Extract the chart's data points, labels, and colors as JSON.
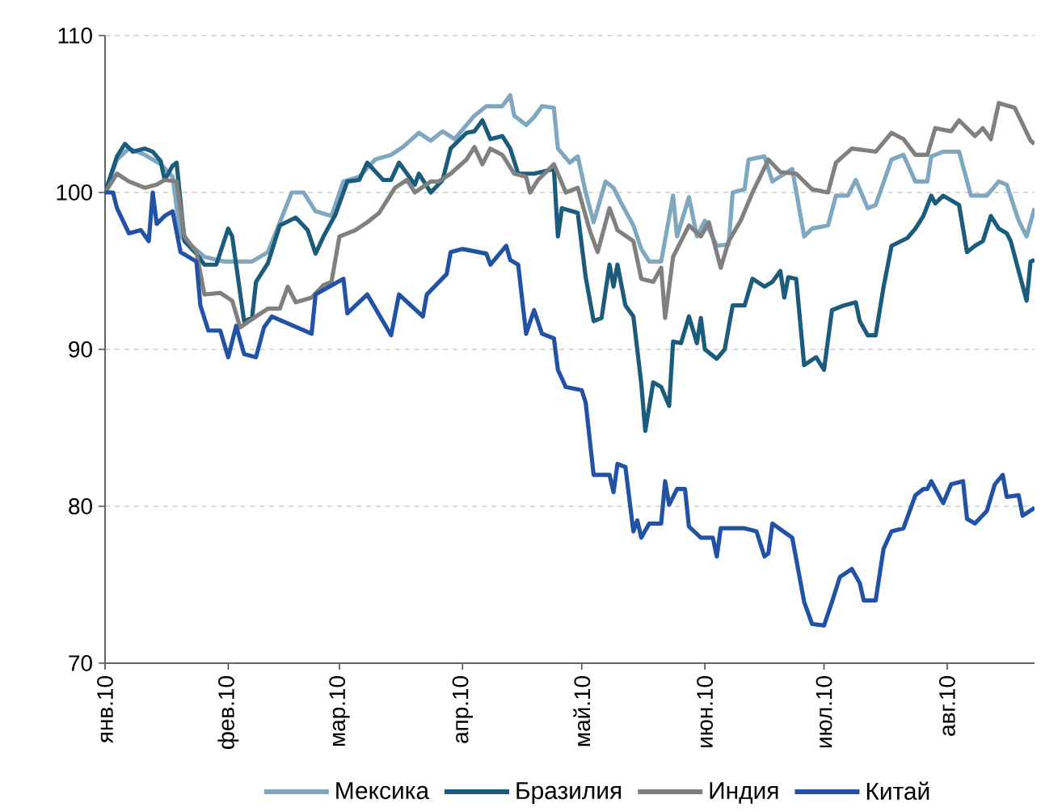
{
  "chart_data": {
    "type": "line",
    "xlim": [
      "2010-01-01",
      "2010-08-23"
    ],
    "xticks": [
      {
        "value": "2010-01-01",
        "label": "янв.10"
      },
      {
        "value": "2010-02-01",
        "label": "фев.10"
      },
      {
        "value": "2010-03-01",
        "label": "мар.10"
      },
      {
        "value": "2010-04-01",
        "label": "апр.10"
      },
      {
        "value": "2010-05-01",
        "label": "май.10"
      },
      {
        "value": "2010-06-01",
        "label": "июн.10"
      },
      {
        "value": "2010-07-01",
        "label": "июл.10"
      },
      {
        "value": "2010-08-01",
        "label": "авг.10"
      }
    ],
    "ylim": [
      70,
      110
    ],
    "yticks": [
      70,
      80,
      90,
      100,
      110
    ],
    "grid": "y",
    "legend": "bottom",
    "marker": "none",
    "line_style": "solid",
    "series": [
      {
        "name": "Мексика",
        "color": "#7fa7c0",
        "x": [
          "2010-01-01",
          "2010-01-04",
          "2010-01-07",
          "2010-01-11",
          "2010-01-15",
          "2010-01-18",
          "2010-01-20",
          "2010-01-26",
          "2010-01-31",
          "2010-02-07",
          "2010-02-11",
          "2010-02-17",
          "2010-02-20",
          "2010-02-23",
          "2010-02-27",
          "2010-03-02",
          "2010-03-06",
          "2010-03-10",
          "2010-03-14",
          "2010-03-17",
          "2010-03-21",
          "2010-03-24",
          "2010-03-27",
          "2010-03-30",
          "2010-04-04",
          "2010-04-07",
          "2010-04-11",
          "2010-04-13",
          "2010-04-14",
          "2010-04-17",
          "2010-04-19",
          "2010-04-21",
          "2010-04-24",
          "2010-04-25",
          "2010-04-28",
          "2010-04-30",
          "2010-05-02",
          "2010-05-04",
          "2010-05-07",
          "2010-05-09",
          "2010-05-11",
          "2010-05-14",
          "2010-05-16",
          "2010-05-18",
          "2010-05-21",
          "2010-05-24",
          "2010-05-25",
          "2010-05-28",
          "2010-05-30",
          "2010-06-01",
          "2010-06-04",
          "2010-06-07",
          "2010-06-08",
          "2010-06-11",
          "2010-06-12",
          "2010-06-16",
          "2010-06-18",
          "2010-06-23",
          "2010-06-26",
          "2010-06-28",
          "2010-07-02",
          "2010-07-04",
          "2010-07-07",
          "2010-07-09",
          "2010-07-12",
          "2010-07-14",
          "2010-07-18",
          "2010-07-21",
          "2010-07-24",
          "2010-07-27",
          "2010-07-28",
          "2010-07-31",
          "2010-08-04",
          "2010-08-07",
          "2010-08-11",
          "2010-08-14",
          "2010-08-16",
          "2010-08-19",
          "2010-08-21",
          "2010-08-23"
        ],
        "values": [
          100,
          102.1,
          102.8,
          102.4,
          101.8,
          101,
          97.2,
          95.9,
          95.6,
          95.6,
          96.2,
          100,
          100,
          98.8,
          98.5,
          100.7,
          101,
          102.1,
          102.4,
          102.9,
          103.8,
          103.3,
          103.9,
          103.4,
          104.9,
          105.5,
          105.5,
          106.2,
          104.9,
          104.3,
          104.8,
          105.5,
          105.4,
          102.8,
          101.9,
          102.3,
          100,
          98.1,
          100.7,
          100.3,
          99.3,
          97.9,
          96.4,
          95.6,
          95.6,
          99.8,
          97.2,
          99.7,
          97.2,
          98.2,
          96.6,
          96.7,
          100,
          100.2,
          102.1,
          102.3,
          100.7,
          101.5,
          97.2,
          97.7,
          97.9,
          99.8,
          99.8,
          100.8,
          99,
          99.2,
          102.1,
          102.4,
          100.7,
          100.7,
          102.3,
          102.6,
          102.6,
          99.8,
          99.8,
          100.7,
          100.5,
          98.2,
          97.2,
          99
        ]
      },
      {
        "name": "Бразилия",
        "color": "#1b5b7b",
        "x": [
          "2010-01-01",
          "2010-01-04",
          "2010-01-06",
          "2010-01-08",
          "2010-01-11",
          "2010-01-13",
          "2010-01-15",
          "2010-01-16",
          "2010-01-18",
          "2010-01-19",
          "2010-01-21",
          "2010-01-24",
          "2010-01-26",
          "2010-01-29",
          "2010-02-01",
          "2010-02-02",
          "2010-02-05",
          "2010-02-07",
          "2010-02-08",
          "2010-02-11",
          "2010-02-14",
          "2010-02-18",
          "2010-02-21",
          "2010-02-23",
          "2010-02-25",
          "2010-02-28",
          "2010-03-03",
          "2010-03-06",
          "2010-03-08",
          "2010-03-12",
          "2010-03-14",
          "2010-03-16",
          "2010-03-20",
          "2010-03-21",
          "2010-03-24",
          "2010-03-27",
          "2010-03-29",
          "2010-04-02",
          "2010-04-04",
          "2010-04-06",
          "2010-04-08",
          "2010-04-11",
          "2010-04-13",
          "2010-04-15",
          "2010-04-19",
          "2010-04-24",
          "2010-04-25",
          "2010-04-26",
          "2010-04-30",
          "2010-05-02",
          "2010-05-04",
          "2010-05-06",
          "2010-05-08",
          "2010-05-09",
          "2010-05-10",
          "2010-05-12",
          "2010-05-14",
          "2010-05-16",
          "2010-05-17",
          "2010-05-19",
          "2010-05-21",
          "2010-05-23",
          "2010-05-24",
          "2010-05-26",
          "2010-05-28",
          "2010-05-30",
          "2010-05-31",
          "2010-06-01",
          "2010-06-04",
          "2010-06-06",
          "2010-06-08",
          "2010-06-11",
          "2010-06-13",
          "2010-06-16",
          "2010-06-18",
          "2010-06-20",
          "2010-06-21",
          "2010-06-22",
          "2010-06-24",
          "2010-06-26",
          "2010-06-29",
          "2010-07-01",
          "2010-07-03",
          "2010-07-06",
          "2010-07-09",
          "2010-07-10",
          "2010-07-12",
          "2010-07-14",
          "2010-07-16",
          "2010-07-18",
          "2010-07-22",
          "2010-07-24",
          "2010-07-26",
          "2010-07-28",
          "2010-07-29",
          "2010-07-31",
          "2010-08-04",
          "2010-08-06",
          "2010-08-08",
          "2010-08-10",
          "2010-08-12",
          "2010-08-14",
          "2010-08-16",
          "2010-08-17",
          "2010-08-21",
          "2010-08-22",
          "2010-08-23"
        ],
        "values": [
          100,
          102.3,
          103.1,
          102.6,
          102.8,
          102.6,
          102,
          100.8,
          101.7,
          101.9,
          96.9,
          96.1,
          95.4,
          95.4,
          97.7,
          97.2,
          91.8,
          92,
          94.3,
          95.5,
          97.9,
          98.4,
          97.6,
          96.1,
          97.2,
          98.6,
          100.7,
          100.8,
          101.9,
          100.8,
          100.8,
          101.9,
          100.5,
          101.2,
          100,
          100.8,
          102.8,
          103.8,
          103.9,
          104.6,
          103.4,
          103.6,
          102.8,
          101.2,
          101.2,
          101.5,
          97.2,
          99,
          98.7,
          94.6,
          91.8,
          92,
          95.4,
          94,
          95.4,
          92.8,
          92.1,
          87.8,
          84.8,
          87.9,
          87.6,
          86.4,
          90.5,
          90.4,
          92.1,
          90.4,
          92,
          90,
          89.4,
          90,
          92.8,
          92.8,
          94.5,
          94,
          94.3,
          95,
          93.3,
          94.6,
          94.5,
          89,
          89.5,
          88.7,
          92.5,
          92.8,
          93,
          91.8,
          90.9,
          90.9,
          94,
          96.6,
          97.1,
          97.7,
          98.5,
          99.8,
          99.3,
          99.8,
          99.2,
          96.2,
          96.6,
          96.9,
          98.5,
          97.7,
          97.4,
          96.9,
          93.1,
          95.6,
          95.7
        ]
      },
      {
        "name": "Индия",
        "color": "#808080",
        "x": [
          "2010-01-01",
          "2010-01-04",
          "2010-01-07",
          "2010-01-11",
          "2010-01-14",
          "2010-01-16",
          "2010-01-19",
          "2010-01-21",
          "2010-01-24",
          "2010-01-26",
          "2010-01-30",
          "2010-02-02",
          "2010-02-04",
          "2010-02-08",
          "2010-02-11",
          "2010-02-14",
          "2010-02-16",
          "2010-02-18",
          "2010-02-22",
          "2010-02-25",
          "2010-02-27",
          "2010-03-01",
          "2010-03-05",
          "2010-03-08",
          "2010-03-11",
          "2010-03-15",
          "2010-03-18",
          "2010-03-20",
          "2010-03-24",
          "2010-03-26",
          "2010-03-29",
          "2010-04-02",
          "2010-04-04",
          "2010-04-06",
          "2010-04-08",
          "2010-04-11",
          "2010-04-14",
          "2010-04-17",
          "2010-04-18",
          "2010-04-20",
          "2010-04-24",
          "2010-04-27",
          "2010-04-30",
          "2010-05-03",
          "2010-05-05",
          "2010-05-08",
          "2010-05-10",
          "2010-05-14",
          "2010-05-16",
          "2010-05-19",
          "2010-05-21",
          "2010-05-22",
          "2010-05-24",
          "2010-05-26",
          "2010-05-28",
          "2010-05-31",
          "2010-06-02",
          "2010-06-05",
          "2010-06-07",
          "2010-06-10",
          "2010-06-13",
          "2010-06-17",
          "2010-06-20",
          "2010-06-24",
          "2010-06-28",
          "2010-07-02",
          "2010-07-04",
          "2010-07-08",
          "2010-07-14",
          "2010-07-18",
          "2010-07-21",
          "2010-07-24",
          "2010-07-27",
          "2010-07-29",
          "2010-08-02",
          "2010-08-04",
          "2010-08-08",
          "2010-08-10",
          "2010-08-12",
          "2010-08-14",
          "2010-08-18",
          "2010-08-22",
          "2010-08-23"
        ],
        "values": [
          100,
          101.2,
          100.7,
          100.3,
          100.5,
          100.8,
          100.7,
          97.2,
          96.2,
          93.5,
          93.6,
          93.1,
          91.4,
          92.1,
          92.6,
          92.6,
          94,
          93,
          93.3,
          94.1,
          94.3,
          97.2,
          97.6,
          98.1,
          98.7,
          100.3,
          100.8,
          100,
          100.7,
          100.7,
          101.2,
          102.1,
          102.9,
          101.8,
          102.8,
          102.4,
          101.2,
          101,
          100,
          100.8,
          101.8,
          100,
          100.3,
          97.6,
          96.2,
          99,
          97.6,
          96.9,
          94.5,
          94.3,
          95.2,
          92,
          95.9,
          96.9,
          97.9,
          97.2,
          98.1,
          95.2,
          96.9,
          98.2,
          100,
          102.1,
          101.3,
          101.2,
          100.2,
          100,
          101.9,
          102.8,
          102.6,
          103.8,
          103.4,
          102.4,
          102.4,
          104.1,
          103.9,
          104.6,
          103.6,
          104.1,
          103.4,
          105.7,
          105.4,
          103.3,
          103.1
        ]
      },
      {
        "name": "Китай",
        "color": "#2152a3",
        "x": [
          "2010-01-01",
          "2010-01-03",
          "2010-01-04",
          "2010-01-07",
          "2010-01-10",
          "2010-01-12",
          "2010-01-13",
          "2010-01-14",
          "2010-01-16",
          "2010-01-18",
          "2010-01-20",
          "2010-01-24",
          "2010-01-25",
          "2010-01-27",
          "2010-01-30",
          "2010-02-01",
          "2010-02-03",
          "2010-02-05",
          "2010-02-08",
          "2010-02-10",
          "2010-02-12",
          "2010-02-22",
          "2010-02-23",
          "2010-03-02",
          "2010-03-03",
          "2010-03-08",
          "2010-03-14",
          "2010-03-16",
          "2010-03-22",
          "2010-03-23",
          "2010-03-28",
          "2010-03-29",
          "2010-04-01",
          "2010-04-07",
          "2010-04-08",
          "2010-04-12",
          "2010-04-13",
          "2010-04-15",
          "2010-04-17",
          "2010-04-19",
          "2010-04-21",
          "2010-04-24",
          "2010-04-25",
          "2010-04-27",
          "2010-05-01",
          "2010-05-02",
          "2010-05-04",
          "2010-05-08",
          "2010-05-09",
          "2010-05-10",
          "2010-05-12",
          "2010-05-14",
          "2010-05-15",
          "2010-05-16",
          "2010-05-18",
          "2010-05-21",
          "2010-05-22",
          "2010-05-23",
          "2010-05-25",
          "2010-05-27",
          "2010-05-28",
          "2010-05-31",
          "2010-06-03",
          "2010-06-04",
          "2010-06-05",
          "2010-06-11",
          "2010-06-14",
          "2010-06-16",
          "2010-06-17",
          "2010-06-18",
          "2010-06-23",
          "2010-06-26",
          "2010-06-28",
          "2010-07-01",
          "2010-07-03",
          "2010-07-05",
          "2010-07-08",
          "2010-07-10",
          "2010-07-11",
          "2010-07-14",
          "2010-07-16",
          "2010-07-18",
          "2010-07-21",
          "2010-07-24",
          "2010-07-26",
          "2010-07-27",
          "2010-07-28",
          "2010-07-31",
          "2010-08-02",
          "2010-08-05",
          "2010-08-06",
          "2010-08-08",
          "2010-08-11",
          "2010-08-13",
          "2010-08-15",
          "2010-08-16",
          "2010-08-19",
          "2010-08-20",
          "2010-08-23"
        ],
        "values": [
          100,
          100,
          99,
          97.4,
          97.6,
          96.9,
          100,
          98,
          98.5,
          98.8,
          96.2,
          95.6,
          92.8,
          91.2,
          91.2,
          89.5,
          91.5,
          89.7,
          89.5,
          91.4,
          92.1,
          91,
          93.5,
          94.5,
          92.3,
          93.5,
          90.9,
          93.5,
          92.1,
          93.5,
          94.8,
          96.2,
          96.4,
          96.1,
          95.4,
          96.6,
          95.7,
          95.4,
          91,
          92.5,
          91,
          90.7,
          88.7,
          87.6,
          87.4,
          86.6,
          82,
          82,
          80.9,
          82.7,
          82.5,
          78.4,
          79.1,
          78,
          78.9,
          78.9,
          81.6,
          80.1,
          81.1,
          81.1,
          78.7,
          78,
          78,
          76.8,
          78.6,
          78.6,
          78.4,
          76.8,
          77,
          78.9,
          78,
          73.9,
          72.5,
          72.4,
          73.9,
          75.5,
          76,
          75.1,
          74,
          74,
          77.3,
          78.4,
          78.6,
          80.7,
          81.1,
          81.1,
          81.6,
          80.2,
          81.4,
          81.6,
          79.2,
          78.9,
          79.7,
          81.4,
          82,
          80.6,
          80.7,
          79.4,
          79.9
        ]
      }
    ]
  }
}
